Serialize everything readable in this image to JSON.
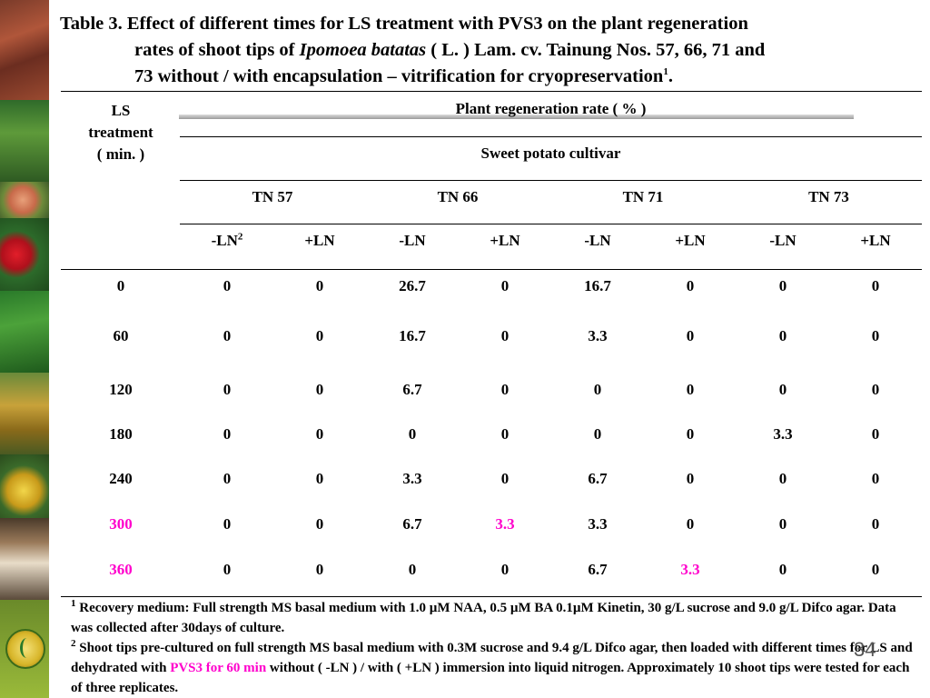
{
  "title": {
    "line1": "Table 3. Effect of different times for LS treatment with PVS3 on the plant regeneration",
    "line2_a": "rates of  shoot tips of ",
    "line2_species": "Ipomoea batatas",
    "line2_b": " ( L. ) Lam. cv. Tainung Nos. 57, 66, 71 and",
    "line3": "73 without / with encapsulation – vitrification for cryopreservation",
    "line3_sup": "1",
    "line3_end": "."
  },
  "header": {
    "ls_treatment": [
      "LS",
      "treatment",
      "( min. )"
    ],
    "plant_regeneration": "Plant regeneration rate ( % )",
    "cultivar": "Sweet potato cultivar",
    "cultivars": [
      "TN 57",
      "TN 66",
      "TN 71",
      "TN 73"
    ],
    "minus_ln": "-LN",
    "minus_ln_sup": "2",
    "plus_ln": "+LN"
  },
  "rows": [
    {
      "time": "0",
      "values": [
        "0",
        "0",
        "26.7",
        "0",
        "16.7",
        "0",
        "0",
        "0"
      ]
    },
    {
      "time": "60",
      "values": [
        "0",
        "0",
        "16.7",
        "0",
        "3.3",
        "0",
        "0",
        "0"
      ]
    },
    {
      "time": "120",
      "values": [
        "0",
        "0",
        "6.7",
        "0",
        "0",
        "0",
        "0",
        "0"
      ]
    },
    {
      "time": "180",
      "values": [
        "0",
        "0",
        "0",
        "0",
        "0",
        "0",
        "3.3",
        "0"
      ]
    },
    {
      "time": "240",
      "values": [
        "0",
        "0",
        "3.3",
        "0",
        "6.7",
        "0",
        "0",
        "0"
      ]
    },
    {
      "time": "300",
      "values": [
        "0",
        "0",
        "6.7",
        "3.3",
        "3.3",
        "0",
        "0",
        "0"
      ],
      "highlight_time": true,
      "highlight_cols": [
        3
      ]
    },
    {
      "time": "360",
      "values": [
        "0",
        "0",
        "0",
        "0",
        "6.7",
        "3.3",
        "0",
        "0"
      ],
      "highlight_time": true,
      "highlight_cols": [
        5
      ]
    }
  ],
  "notes": {
    "n1_sup": "1",
    "n1": " Recovery medium: Full strength MS basal medium with 1.0 µM NAA, 0.5 µM BA 0.1µM Kinetin, 30 g/L sucrose and 9.0 g/L Difco agar. Data was collected after 30days of culture.",
    "n2_sup": "2",
    "n2_a": " Shoot tips pre-cultured on full strength MS basal medium with 0.3M sucrose and 9.4 g/L Difco agar, then loaded with different times for LS and dehydrated with ",
    "n2_highlight": "PVS3 for 60 min",
    "n2_b": " without ( -LN ) / with ( +LN ) immersion into liquid nitrogen. Approximately 10 shoot tips were tested for each of three replicates."
  },
  "page_number": "34",
  "colors": {
    "highlight": "#ff00cc",
    "rule": "#000000"
  },
  "icons": [
    "photo-strip",
    "logo-icon"
  ]
}
